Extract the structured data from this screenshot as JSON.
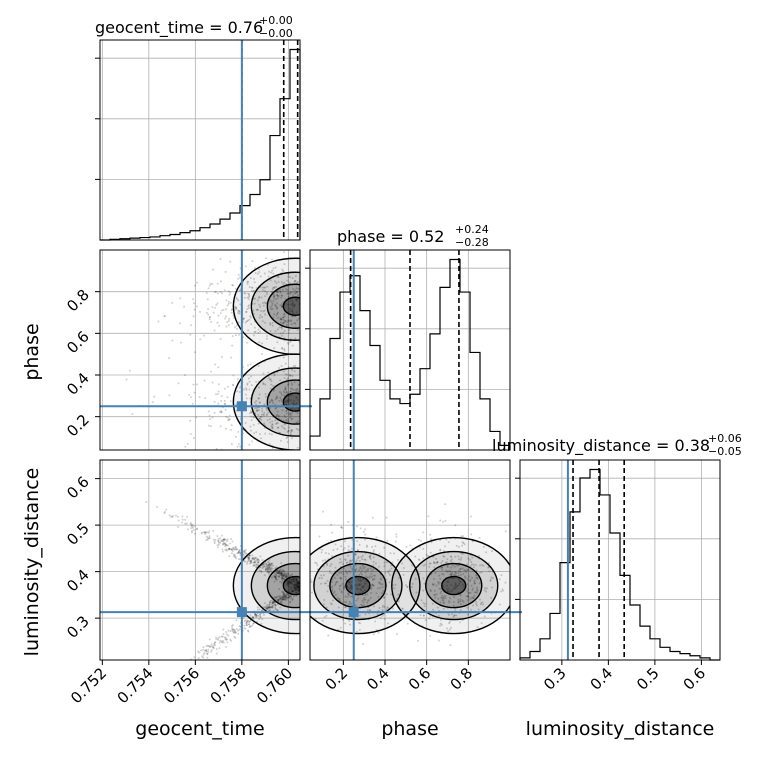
{
  "chart_data": {
    "type": "corner",
    "parameters": [
      "geocent_time",
      "phase",
      "luminosity_distance"
    ],
    "colors": {
      "truth": "#4682b4",
      "hist": "#000000",
      "grid": "#b0b0b0",
      "density": "#000000"
    },
    "grid": true,
    "truth": {
      "geocent_time": 0.758,
      "phase": 0.25,
      "luminosity_distance": 0.313
    },
    "titles": [
      {
        "param": "geocent_time",
        "text": "geocent_time = 0.76",
        "upper": "+0.00",
        "lower": "−0.00"
      },
      {
        "param": "phase",
        "text": "phase = 0.52",
        "upper": "+0.24",
        "lower": "−0.28"
      },
      {
        "param": "luminosity_distance",
        "text": "luminosity_distance = 0.38",
        "upper": "+0.06",
        "lower": "−0.05"
      }
    ],
    "xlabels": [
      "geocent_time",
      "phase",
      "luminosity_distance"
    ],
    "ylabels": [
      "phase",
      "luminosity_distance"
    ],
    "ranges": {
      "geocent_time": [
        0.7519,
        0.7605
      ],
      "phase": [
        0.04,
        1.0
      ],
      "luminosity_distance": [
        0.21,
        0.64
      ]
    },
    "ticks": {
      "geocent_time": [
        "0.752",
        "0.754",
        "0.756",
        "0.758",
        "0.760"
      ],
      "phase": [
        "0.2",
        "0.4",
        "0.6",
        "0.8"
      ],
      "luminosity_distance": [
        "0.3",
        "0.4",
        "0.5",
        "0.6"
      ]
    },
    "hist_geocent_time": {
      "bin_edges": [
        0.7519,
        0.75233,
        0.75276,
        0.75319,
        0.75362,
        0.75405,
        0.75448,
        0.75491,
        0.75534,
        0.75577,
        0.7562,
        0.75663,
        0.75706,
        0.75749,
        0.75792,
        0.75835,
        0.75878,
        0.75921,
        0.75964,
        0.76007,
        0.7605
      ],
      "counts": [
        0,
        1,
        2,
        3,
        4,
        5,
        7,
        9,
        12,
        15,
        20,
        26,
        34,
        44,
        56,
        74,
        98,
        170,
        230,
        310
      ],
      "quantiles": [
        0.758,
        0.7598,
        0.7604
      ]
    },
    "hist_phase": {
      "bin_edges": [
        0.04,
        0.088,
        0.136,
        0.184,
        0.232,
        0.28,
        0.328,
        0.376,
        0.424,
        0.472,
        0.52,
        0.568,
        0.616,
        0.664,
        0.712,
        0.76,
        0.808,
        0.856,
        0.904,
        0.952,
        1.0
      ],
      "counts": [
        6,
        22,
        48,
        68,
        75,
        60,
        45,
        30,
        22,
        20,
        24,
        35,
        50,
        70,
        82,
        68,
        42,
        22,
        8,
        2
      ],
      "quantiles": [
        0.235,
        0.52,
        0.755
      ]
    },
    "hist_luminosity_distance": {
      "bin_edges": [
        0.21,
        0.2315,
        0.253,
        0.2745,
        0.296,
        0.3175,
        0.339,
        0.3605,
        0.382,
        0.4035,
        0.425,
        0.4465,
        0.468,
        0.4895,
        0.511,
        0.5325,
        0.554,
        0.5755,
        0.597,
        0.6185,
        0.64
      ],
      "counts": [
        1,
        4,
        10,
        22,
        46,
        70,
        86,
        90,
        78,
        60,
        40,
        26,
        16,
        10,
        6,
        4,
        3,
        2,
        1,
        0
      ],
      "quantiles": [
        0.324,
        0.38,
        0.434
      ]
    }
  }
}
